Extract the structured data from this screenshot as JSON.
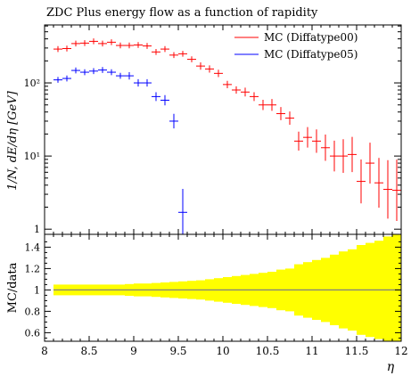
{
  "title": "ZDC Plus energy flow as a function of rapidity",
  "ylabel_main": "1/N, dE/dη [GeV]",
  "ylabel_ratio": "MC/data",
  "xlabel": "η",
  "x_ticks": [
    "8",
    "8.5",
    "9",
    "9.5",
    "10",
    "10.5",
    "11",
    "11.5",
    "12"
  ],
  "main_y_ticks": [
    "1",
    "10¹",
    "10²"
  ],
  "ratio_y_ticks": [
    "0.6",
    "0.8",
    "1",
    "1.2",
    "1.4"
  ],
  "colors": {
    "series1": "#ff0000",
    "series2": "#0000ff",
    "band": "#ffff00",
    "ratio_line": "#7f7f7f"
  },
  "chart_data": [
    {
      "type": "scatter",
      "title": "ZDC Plus energy flow as a function of rapidity",
      "xlabel": "η",
      "ylabel": "1/N, dE/dη [GeV]",
      "xlim": [
        8,
        12
      ],
      "ylim": [
        0.85,
        620
      ],
      "yscale": "log",
      "legend": "top-right",
      "series": [
        {
          "name": "MC (Diffatype00)",
          "color": "#ff0000",
          "x": [
            8.15,
            8.25,
            8.35,
            8.45,
            8.55,
            8.65,
            8.75,
            8.85,
            8.95,
            9.05,
            9.15,
            9.25,
            9.35,
            9.45,
            9.55,
            9.65,
            9.75,
            9.85,
            9.95,
            10.05,
            10.15,
            10.25,
            10.35,
            10.45,
            10.55,
            10.65,
            10.75,
            10.85,
            10.95,
            11.05,
            11.15,
            11.25,
            11.35,
            11.45,
            11.55,
            11.65,
            11.75,
            11.85,
            11.95
          ],
          "y": [
            290,
            295,
            345,
            350,
            370,
            345,
            360,
            325,
            325,
            330,
            320,
            265,
            290,
            240,
            250,
            210,
            170,
            155,
            135,
            95,
            80,
            75,
            65,
            50,
            50,
            38,
            33,
            16,
            18,
            16,
            13,
            10,
            10,
            10.5,
            4.5,
            8,
            4.3,
            3.5,
            3.4
          ],
          "y_err": [
            0.04,
            0.04,
            0.04,
            0.04,
            0.04,
            0.04,
            0.04,
            0.04,
            0.04,
            0.04,
            0.04,
            0.04,
            0.04,
            0.04,
            0.04,
            0.04,
            0.05,
            0.05,
            0.05,
            0.05,
            0.05,
            0.06,
            0.06,
            0.07,
            0.08,
            0.09,
            0.09,
            0.13,
            0.14,
            0.16,
            0.18,
            0.21,
            0.23,
            0.24,
            0.3,
            0.28,
            0.34,
            0.4,
            0.42
          ]
        },
        {
          "name": "MC (Diffatype05)",
          "color": "#0000ff",
          "x": [
            8.15,
            8.25,
            8.35,
            8.45,
            8.55,
            8.65,
            8.75,
            8.85,
            8.95,
            9.05,
            9.15,
            9.25,
            9.35,
            9.45,
            9.55
          ],
          "y": [
            110,
            115,
            148,
            140,
            145,
            150,
            140,
            125,
            125,
            100,
            100,
            65,
            58,
            30,
            1.7
          ],
          "y_err": [
            0.04,
            0.04,
            0.04,
            0.04,
            0.04,
            0.04,
            0.04,
            0.04,
            0.05,
            0.05,
            0.05,
            0.06,
            0.07,
            0.1,
            0.32
          ]
        }
      ]
    },
    {
      "type": "area",
      "xlabel": "η",
      "ylabel": "MC/data",
      "xlim": [
        8,
        12
      ],
      "ylim": [
        0.52,
        1.52
      ],
      "reference_line": 1,
      "band_x_edges": [
        8.1,
        8.2,
        8.3,
        8.4,
        8.5,
        8.6,
        8.7,
        8.8,
        8.9,
        9.0,
        9.1,
        9.2,
        9.3,
        9.4,
        9.5,
        9.6,
        9.7,
        9.8,
        9.9,
        10.0,
        10.1,
        10.2,
        10.3,
        10.4,
        10.5,
        10.6,
        10.7,
        10.8,
        10.9,
        11.0,
        11.1,
        11.2,
        11.3,
        11.4,
        11.5,
        11.6,
        11.7,
        11.8,
        11.9,
        12.0
      ],
      "band_half_width": [
        0.05,
        0.05,
        0.05,
        0.05,
        0.05,
        0.05,
        0.05,
        0.05,
        0.055,
        0.06,
        0.06,
        0.065,
        0.07,
        0.075,
        0.08,
        0.085,
        0.09,
        0.1,
        0.11,
        0.12,
        0.13,
        0.14,
        0.15,
        0.16,
        0.17,
        0.19,
        0.2,
        0.24,
        0.26,
        0.28,
        0.3,
        0.33,
        0.36,
        0.38,
        0.42,
        0.44,
        0.46,
        0.5,
        0.52
      ]
    }
  ]
}
